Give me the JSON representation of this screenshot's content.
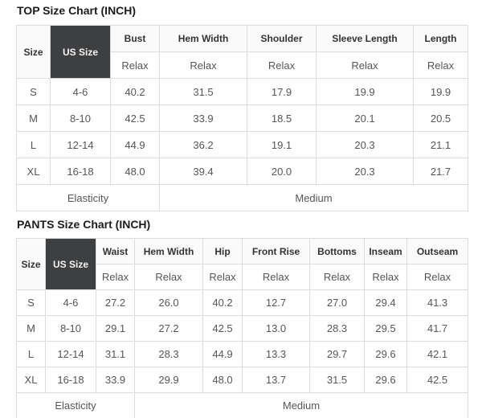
{
  "colors": {
    "dark_header_bg": "#3e3f41",
    "dark_header_text": "#f5f5f5",
    "border": "#dcdcdc",
    "header_text": "#333333",
    "data_text": "#555555",
    "page_bg": "#ffffff"
  },
  "top_chart": {
    "title": "TOP Size Chart (INCH)",
    "size_col_label": "Size",
    "us_size_col_label": "US Size",
    "measure_columns": [
      "Bust",
      "Hem Width",
      "Shoulder",
      "Sleeve Length",
      "Length"
    ],
    "fit_label": "Relax",
    "rows": [
      {
        "size": "S",
        "us_size": "4-6",
        "values": [
          "40.2",
          "31.5",
          "17.9",
          "19.9",
          "19.9"
        ]
      },
      {
        "size": "M",
        "us_size": "8-10",
        "values": [
          "42.5",
          "33.9",
          "18.5",
          "20.1",
          "20.5"
        ]
      },
      {
        "size": "L",
        "us_size": "12-14",
        "values": [
          "44.9",
          "36.2",
          "19.1",
          "20.3",
          "21.1"
        ]
      },
      {
        "size": "XL",
        "us_size": "16-18",
        "values": [
          "48.0",
          "39.4",
          "20.0",
          "20.3",
          "21.7"
        ]
      }
    ],
    "elasticity_label": "Elasticity",
    "elasticity_value": "Medium"
  },
  "pants_chart": {
    "title": "PANTS Size Chart (INCH)",
    "size_col_label": "Size",
    "us_size_col_label": "US Size",
    "measure_columns": [
      "Waist",
      "Hem Width",
      "Hip",
      "Front Rise",
      "Bottoms",
      "Inseam",
      "Outseam"
    ],
    "fit_label": "Relax",
    "rows": [
      {
        "size": "S",
        "us_size": "4-6",
        "values": [
          "27.2",
          "26.0",
          "40.2",
          "12.7",
          "27.0",
          "29.4",
          "41.3"
        ]
      },
      {
        "size": "M",
        "us_size": "8-10",
        "values": [
          "29.1",
          "27.2",
          "42.5",
          "13.0",
          "28.3",
          "29.5",
          "41.7"
        ]
      },
      {
        "size": "L",
        "us_size": "12-14",
        "values": [
          "31.1",
          "28.3",
          "44.9",
          "13.3",
          "29.7",
          "29.6",
          "42.1"
        ]
      },
      {
        "size": "XL",
        "us_size": "16-18",
        "values": [
          "33.9",
          "29.9",
          "48.0",
          "13.7",
          "31.5",
          "29.6",
          "42.5"
        ]
      }
    ],
    "elasticity_label": "Elasticity",
    "elasticity_value": "Medium"
  }
}
